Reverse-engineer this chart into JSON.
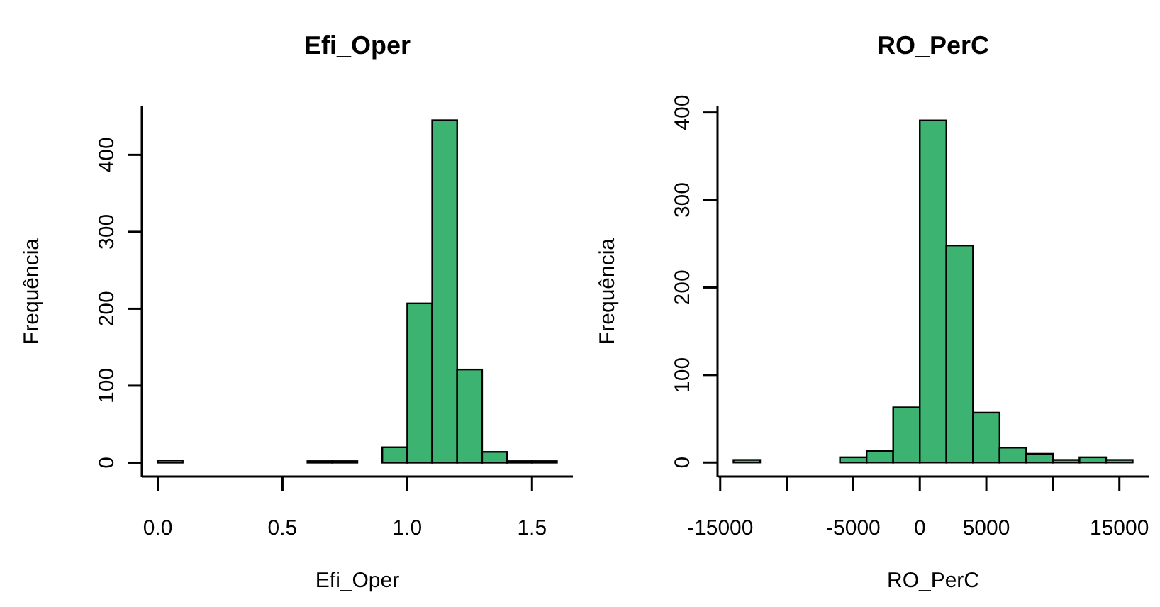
{
  "chart_data": [
    {
      "type": "histogram",
      "title": "Efi_Oper",
      "xlabel": "Efi_Oper",
      "ylabel": "Frequência",
      "color": "#3cb371",
      "bins": [
        0,
        0.1,
        0.2,
        0.3,
        0.4,
        0.5,
        0.6,
        0.7,
        0.8,
        0.9,
        1.0,
        1.1,
        1.2,
        1.3,
        1.4,
        1.5,
        1.6
      ],
      "values": [
        3,
        0,
        0,
        0,
        0,
        0,
        2,
        2,
        0,
        20,
        207,
        445,
        121,
        14,
        2,
        2
      ],
      "xlim": [
        -0.064,
        1.664
      ],
      "xticks": [
        {
          "value": 0,
          "label": "0.0"
        },
        0.5,
        {
          "value": 1,
          "label": "1.0"
        },
        1.5
      ],
      "ylim": [
        -18,
        463
      ],
      "yticks": [
        0,
        100,
        200,
        300,
        400
      ]
    },
    {
      "type": "histogram",
      "title": "RO_PerC",
      "xlabel": "RO_PerC",
      "ylabel": "Frequência",
      "color": "#3cb371",
      "bins": [
        -14000,
        -12000,
        -10000,
        -8000,
        -6000,
        -4000,
        -2000,
        0,
        2000,
        4000,
        6000,
        8000,
        10000,
        12000,
        14000,
        16000
      ],
      "values": [
        3,
        0,
        0,
        0,
        6,
        13,
        63,
        391,
        248,
        57,
        17,
        10,
        3,
        6,
        3
      ],
      "xlim": [
        -15200,
        17200
      ],
      "xticks": [
        -15000,
        {
          "value": -10000,
          "label": null
        },
        -5000,
        0,
        5000,
        {
          "value": 10000,
          "label": null
        },
        15000
      ],
      "ylim": [
        -16,
        407
      ],
      "yticks": [
        0,
        100,
        200,
        300,
        400
      ]
    }
  ]
}
